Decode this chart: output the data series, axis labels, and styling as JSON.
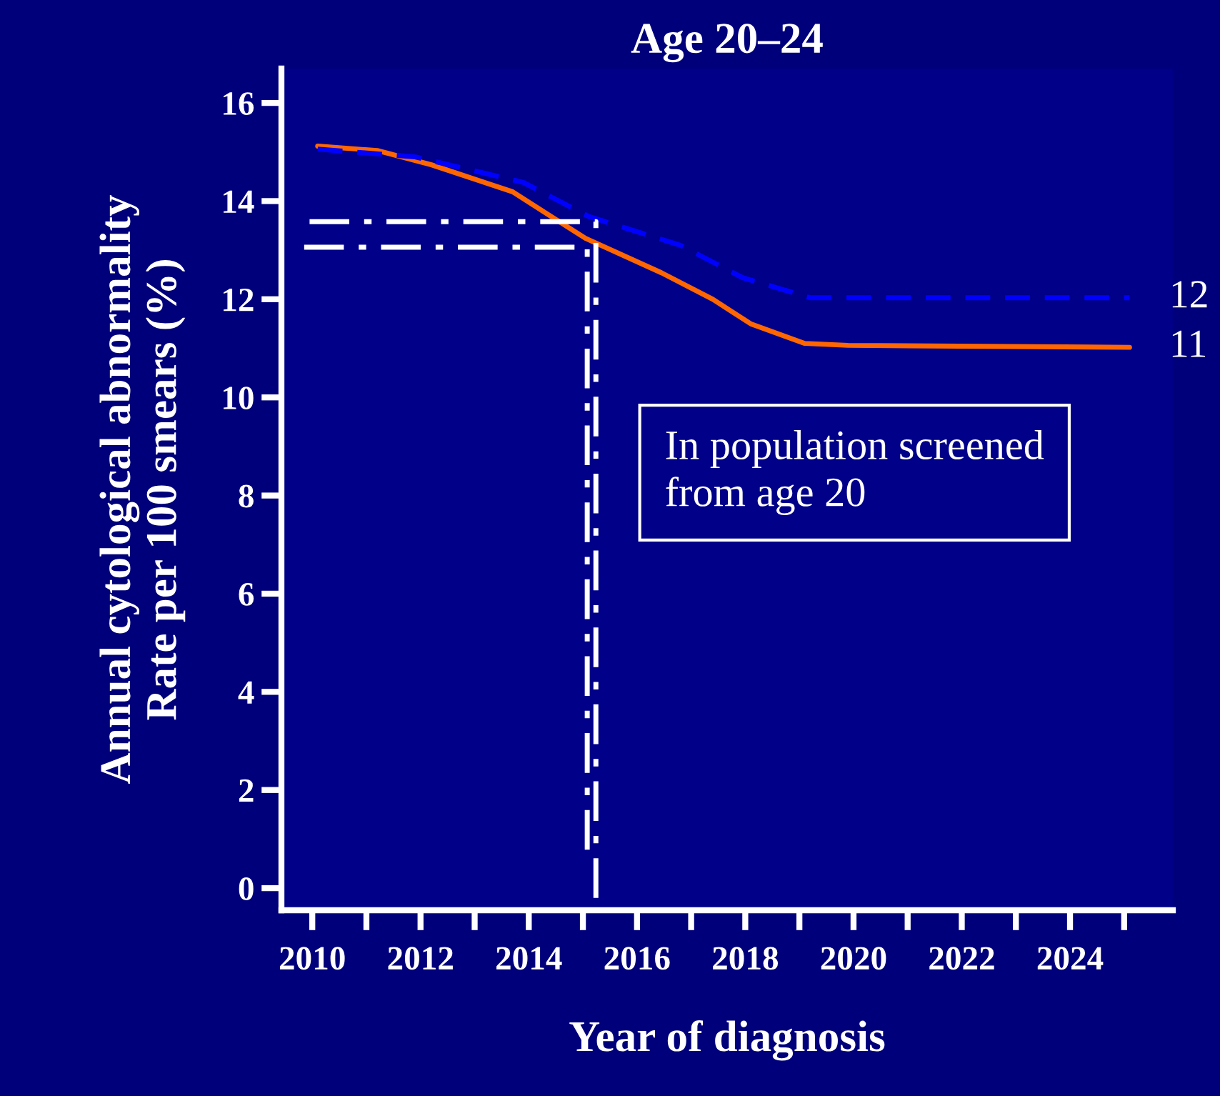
{
  "chart_data": {
    "type": "line",
    "title": "Age 20–24",
    "xlabel": "Year of diagnosis",
    "ylabel": "Annual cytological abnormality\nRate per 100 smears (%)",
    "series": [
      {
        "color": "#ff6600",
        "line_style": "solid",
        "x": [
          2010.1,
          2011.2,
          2012.2,
          2013.7,
          2015.05,
          2016.45,
          2017.4,
          2018.1,
          2019.1,
          2019.9,
          2025.1
        ],
        "values": [
          15.12,
          15.03,
          14.74,
          14.19,
          13.24,
          12.54,
          12.0,
          11.5,
          11.1,
          11.06,
          11.02
        ]
      },
      {
        "color": "#0000ff",
        "line_style": "dashed",
        "x": [
          2010.1,
          2011.9,
          2013.9,
          2015.1,
          2016.8,
          2017.95,
          2019.2,
          2025.1
        ],
        "values": [
          15.06,
          14.9,
          14.38,
          13.69,
          13.1,
          12.44,
          12.03,
          12.03
        ]
      },
      {
        "color": "#ffffff",
        "line_style": "dashed",
        "x": [
          2009.95,
          2015.24,
          2015.24
        ],
        "values": [
          13.58,
          13.58,
          -0.2
        ]
      },
      {
        "color": "#ffffff",
        "line_style": "dashed",
        "x": [
          2009.85,
          2015.08,
          2015.08
        ],
        "values": [
          13.06,
          13.06,
          0.5
        ]
      }
    ],
    "annotations": [
      {
        "text": "12",
        "x": 2025.1,
        "y": 12.03
      },
      {
        "text": "11",
        "x": 2025.1,
        "y": 11.02
      },
      "In population screened\nfrom age 20"
    ],
    "xlim": [
      2009.43,
      2025.9
    ],
    "ylim": [
      -0.45,
      16.7
    ],
    "xticks": [
      2010,
      {
        "value": 2011,
        "label": null
      },
      2012,
      {
        "value": 2013,
        "label": null
      },
      2014,
      {
        "value": 2015,
        "label": null
      },
      2016,
      {
        "value": 2017,
        "label": null
      },
      2018,
      {
        "value": 2019,
        "label": null
      },
      2020,
      {
        "value": 2021,
        "label": null
      },
      2022,
      {
        "value": 2023,
        "label": null
      },
      2024,
      {
        "value": 2025,
        "label": null
      }
    ],
    "yticks": [
      0,
      2,
      4,
      6,
      8,
      10,
      12,
      14,
      16
    ],
    "grid": false,
    "legend": false,
    "marker": "none"
  }
}
